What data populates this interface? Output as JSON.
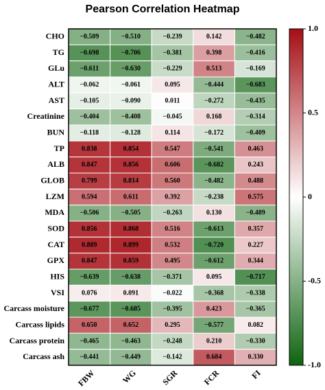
{
  "chart_data": {
    "type": "heatmap",
    "title": "Pearson Correlation Heatmap",
    "columns": [
      "FBW",
      "WG",
      "SGR",
      "FCR",
      "FI"
    ],
    "rows": [
      "CHO",
      "TG",
      "GLu",
      "ALT",
      "AST",
      "Creatinine",
      "BUN",
      "TP",
      "ALB",
      "GLOB",
      "LZM",
      "MDA",
      "SOD",
      "CAT",
      "GPX",
      "HIS",
      "VSI",
      "Carcass moisture",
      "Carcass lipids",
      "Carcass protein",
      "Carcass ash"
    ],
    "values": [
      [
        -0.509,
        -0.51,
        -0.239,
        0.142,
        -0.482
      ],
      [
        -0.698,
        -0.706,
        -0.381,
        0.398,
        -0.416
      ],
      [
        -0.611,
        -0.63,
        -0.229,
        0.513,
        -0.169
      ],
      [
        -0.062,
        -0.061,
        0.095,
        -0.444,
        -0.683
      ],
      [
        -0.105,
        -0.09,
        0.011,
        -0.272,
        -0.435
      ],
      [
        -0.404,
        -0.408,
        -0.045,
        0.168,
        -0.314
      ],
      [
        -0.118,
        -0.128,
        0.114,
        -0.172,
        -0.409
      ],
      [
        0.838,
        0.854,
        0.547,
        -0.541,
        0.463
      ],
      [
        0.847,
        0.856,
        0.606,
        -0.682,
        0.243
      ],
      [
        0.799,
        0.814,
        0.56,
        -0.482,
        0.488
      ],
      [
        0.594,
        0.611,
        0.392,
        -0.238,
        0.575
      ],
      [
        -0.506,
        -0.505,
        -0.263,
        0.13,
        -0.489
      ],
      [
        0.856,
        0.868,
        0.516,
        -0.613,
        0.357
      ],
      [
        0.889,
        0.899,
        0.532,
        -0.72,
        0.227
      ],
      [
        0.847,
        0.859,
        0.495,
        -0.612,
        0.344
      ],
      [
        -0.639,
        -0.638,
        -0.371,
        0.095,
        -0.717
      ],
      [
        0.076,
        0.091,
        -0.022,
        -0.368,
        -0.338
      ],
      [
        -0.677,
        -0.685,
        -0.395,
        0.423,
        -0.365
      ],
      [
        0.65,
        0.652,
        0.295,
        -0.577,
        0.082
      ],
      [
        -0.465,
        -0.463,
        -0.248,
        0.21,
        -0.33
      ],
      [
        -0.441,
        -0.449,
        -0.142,
        0.684,
        0.33
      ]
    ],
    "value_labels": [
      [
        "−0.509",
        "−0.510",
        "−0.239",
        "0.142",
        "−0.482"
      ],
      [
        "−0.698",
        "−0.706",
        "−0.381",
        "0.398",
        "−0.416"
      ],
      [
        "−0.611",
        "−0.630",
        "−0.229",
        "0.513",
        "−0.169"
      ],
      [
        "−0.062",
        "−0.061",
        "0.095",
        "−0.444",
        "−0.683"
      ],
      [
        "−0.105",
        "−0.090",
        "0.011",
        "−0.272",
        "−0.435"
      ],
      [
        "−0.404",
        "−0.408",
        "−0.045",
        "0.168",
        "−0.314"
      ],
      [
        "−0.118",
        "−0.128",
        "0.114",
        "−0.172",
        "−0.409"
      ],
      [
        "0.838",
        "0.854",
        "0.547",
        "−0.541",
        "0.463"
      ],
      [
        "0.847",
        "0.856",
        "0.606",
        "−0.682",
        "0.243"
      ],
      [
        "0.799",
        "0.814",
        "0.560",
        "−0.482",
        "0.488"
      ],
      [
        "0.594",
        "0.611",
        "0.392",
        "−0.238",
        "0.575"
      ],
      [
        "−0.506",
        "−0.505",
        "−0.263",
        "0.130",
        "−0.489"
      ],
      [
        "0.856",
        "0.868",
        "0.516",
        "−0.613",
        "0.357"
      ],
      [
        "0.889",
        "0.899",
        "0.532",
        "−0.720",
        "0.227"
      ],
      [
        "0.847",
        "0.859",
        "0.495",
        "−0.612",
        "0.344"
      ],
      [
        "−0.639",
        "−0.638",
        "−0.371",
        "0.095",
        "−0.717"
      ],
      [
        "0.076",
        "0.091",
        "−0.022",
        "−0.368",
        "−0.338"
      ],
      [
        "−0.677",
        "−0.685",
        "−0.395",
        "0.423",
        "−0.365"
      ],
      [
        "0.650",
        "0.652",
        "0.295",
        "−0.577",
        "0.082"
      ],
      [
        "−0.465",
        "−0.463",
        "−0.248",
        "0.210",
        "−0.330"
      ],
      [
        "−0.441",
        "−0.449",
        "−0.142",
        "0.684",
        "0.330"
      ]
    ],
    "clim": [
      -1,
      1
    ],
    "colors": [
      "#0f6410",
      "#ffffff",
      "#a50f15"
    ],
    "cticks": [
      {
        "value": 1,
        "label": "1.0"
      },
      0.5,
      0,
      -0.5,
      {
        "value": -1,
        "label": "-1.0"
      }
    ]
  }
}
